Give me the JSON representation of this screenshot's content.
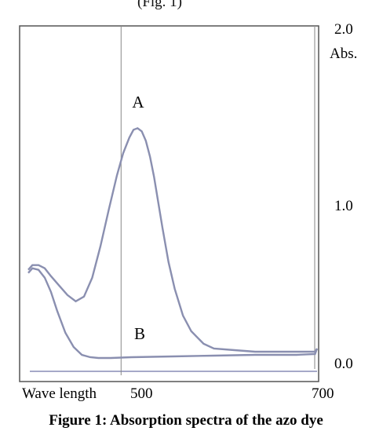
{
  "top_caption": "(Fig. 1)",
  "caption": "Figure 1: Absorption spectra of the azo dye",
  "chart_data": {
    "type": "line",
    "title": "",
    "xlabel": "Wave length",
    "ylabel": "Abs.",
    "xlim": [
      420,
      700
    ],
    "ylim": [
      0.0,
      2.0
    ],
    "x_tick_labels": [
      "500",
      "700"
    ],
    "y_tick_labels": [
      "2.0",
      "1.0",
      "0.0"
    ],
    "grid": false,
    "series": [
      {
        "name": "A",
        "color": "#8a8fb0",
        "x": [
          420,
          424,
          430,
          436,
          442,
          450,
          458,
          466,
          474,
          482,
          490,
          498,
          506,
          512,
          518,
          522,
          526,
          530,
          534,
          538,
          542,
          546,
          550,
          556,
          562,
          570,
          578,
          590,
          600,
          620,
          640,
          660,
          680,
          690,
          698,
          700
        ],
        "y": [
          0.57,
          0.6,
          0.6,
          0.58,
          0.53,
          0.47,
          0.41,
          0.37,
          0.4,
          0.52,
          0.72,
          0.95,
          1.17,
          1.31,
          1.41,
          1.46,
          1.47,
          1.45,
          1.39,
          1.29,
          1.16,
          1.0,
          0.84,
          0.62,
          0.45,
          0.28,
          0.18,
          0.1,
          0.07,
          0.06,
          0.05,
          0.05,
          0.05,
          0.05,
          0.05,
          0.07
        ]
      },
      {
        "name": "B",
        "color": "#8a8fb0",
        "x": [
          420,
          424,
          430,
          436,
          442,
          448,
          456,
          464,
          472,
          480,
          488,
          500,
          520,
          560,
          600,
          640,
          680,
          698,
          700
        ],
        "y": [
          0.55,
          0.58,
          0.57,
          0.52,
          0.43,
          0.31,
          0.17,
          0.08,
          0.03,
          0.015,
          0.01,
          0.01,
          0.015,
          0.02,
          0.025,
          0.03,
          0.03,
          0.035,
          0.07
        ]
      }
    ],
    "annotations": [
      {
        "text": "A",
        "x": 526,
        "y": 1.6
      },
      {
        "text": "B",
        "x": 528,
        "y": 0.13
      }
    ],
    "vertical_marker_x": 510
  }
}
